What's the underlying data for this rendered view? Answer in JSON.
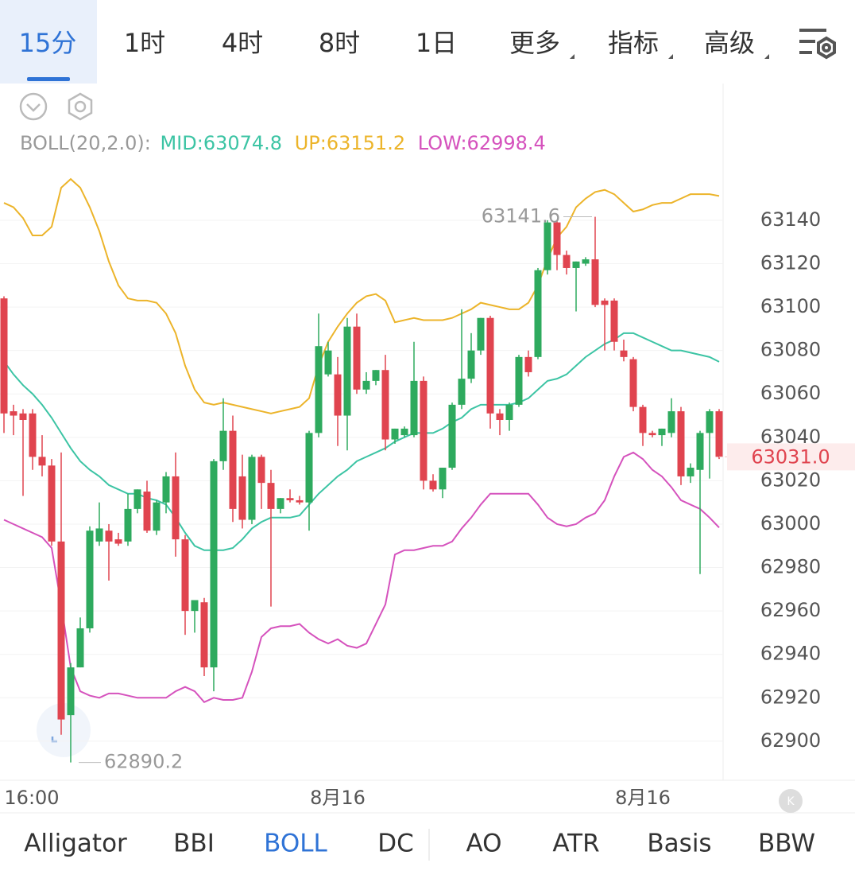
{
  "timeframe_tabs": [
    "15分",
    "1时",
    "4时",
    "8时",
    "1日",
    "更多",
    "指标",
    "高级"
  ],
  "indicator_tabs": [
    "Alligator",
    "BBI",
    "BOLL",
    "DC",
    "AO",
    "ATR",
    "Basis",
    "BBW"
  ],
  "chart_data": {
    "type": "candlestick",
    "indicator_label": "BOLL(20,2.0):",
    "categories": [
      null,
      null,
      null,
      "16:00",
      null,
      null,
      null,
      null,
      null,
      null,
      null,
      null,
      null,
      null,
      null,
      null,
      null,
      null,
      null,
      null,
      null,
      null,
      null,
      null,
      null,
      null,
      null,
      null,
      null,
      null,
      null,
      null,
      null,
      null,
      null,
      "8月16",
      null,
      null,
      null,
      null,
      null,
      null,
      null,
      null,
      null,
      null,
      null,
      null,
      null,
      null,
      null,
      null,
      null,
      null,
      null,
      null,
      null,
      null,
      null,
      null,
      null,
      null,
      null,
      null,
      null,
      null,
      null,
      "8月16",
      null,
      null,
      null,
      null,
      null,
      null,
      null,
      null
    ],
    "open": [
      63104,
      63052,
      63051,
      63051,
      63031,
      63027,
      62992,
      62912,
      62934,
      62952,
      62992,
      62997,
      62993,
      62992,
      63007,
      63015,
      62997,
      63010,
      63022,
      62993,
      62960,
      62964,
      62934,
      63029,
      63043,
      63022,
      63002,
      63031,
      63019,
      63007,
      63012,
      63011,
      63010,
      63042,
      63069,
      63069,
      63050,
      63091,
      63062,
      63066,
      63071,
      63039,
      63041,
      63041,
      63066,
      63020,
      63016,
      63026,
      63055,
      63067,
      63080,
      63095,
      63051,
      63048,
      63055,
      63077,
      63077,
      63117,
      63139,
      63124,
      63118,
      63120,
      63122,
      63103,
      63103,
      63080,
      63076,
      63054,
      63042,
      63041,
      63042,
      63052,
      63022,
      63025,
      63042,
      63052
    ],
    "high": [
      63105,
      63055,
      63053,
      63053,
      63041,
      63030,
      63033,
      62936,
      62957,
      62999,
      63010,
      63000,
      62996,
      63014,
      63016,
      63020,
      63011,
      63024,
      63033,
      62995,
      62965,
      62966,
      63030,
      63058,
      63050,
      63032,
      63032,
      63032,
      63025,
      63012,
      63016,
      63013,
      63043,
      63097,
      63084,
      63077,
      63095,
      63097,
      63070,
      63071,
      63078,
      63044,
      63045,
      63084,
      63068,
      63023,
      63026,
      63056,
      63099,
      63088,
      63095,
      63096,
      63053,
      63056,
      63078,
      63080,
      63118,
      63140,
      63140,
      63126,
      63121,
      63123,
      63141.6,
      63104,
      63104,
      63085,
      63077,
      63055,
      63043,
      63044,
      63058,
      63054,
      63028,
      63043,
      63053,
      63053
    ],
    "low": [
      63042,
      63041,
      63013,
      63025,
      63022,
      62990,
      62903,
      62890.2,
      62934,
      62950,
      62990,
      62974,
      62990,
      62990,
      63005,
      62996,
      62995,
      63005,
      62985,
      62949,
      62950,
      62930,
      62923,
      63025,
      63001,
      62998,
      63000,
      63007,
      62962,
      63005,
      63010,
      63009,
      62997,
      63040,
      63068,
      63036,
      63034,
      63060,
      63060,
      63064,
      63034,
      63037,
      63040,
      63040,
      63016,
      63015,
      63012,
      63025,
      63053,
      63065,
      63078,
      63044,
      63041,
      63043,
      63054,
      63068,
      63076,
      63115,
      63117,
      63115,
      63098,
      63119,
      63100,
      63080,
      63080,
      63075,
      63052,
      63036,
      63040,
      63036,
      63040,
      63018,
      63019,
      62977,
      63021,
      63030
    ],
    "close": [
      63051,
      63050,
      63048,
      63031,
      63027,
      62992,
      62910,
      62934,
      62952,
      62997,
      62998,
      62992,
      62991,
      63007,
      63016,
      62997,
      63010,
      63022,
      62993,
      62960,
      62965,
      62934,
      63029,
      63043,
      63007,
      63002,
      63031,
      63019,
      63007,
      63012,
      63011,
      63010,
      63042,
      63082,
      63080,
      63050,
      63091,
      63062,
      63066,
      63071,
      63039,
      63044,
      63044,
      63066,
      63020,
      63016,
      63026,
      63055,
      63067,
      63080,
      63095,
      63051,
      63048,
      63055,
      63077,
      63070,
      63117,
      63139,
      63124,
      63118,
      63121,
      63122,
      63101,
      63101,
      63084,
      63077,
      63054,
      63042,
      63041,
      63044,
      63052,
      63022,
      63026,
      63042,
      63052,
      63031
    ],
    "up_color": "#2eaa5e",
    "down_color": "#e0444f",
    "series": [
      {
        "name": "MID:63074.8",
        "color": "#3cc4a4",
        "values": [
          63075,
          63069,
          63064,
          63060,
          63055,
          63049,
          63042,
          63035,
          63029,
          63025,
          63022,
          63018,
          63016,
          63014,
          63014,
          63012,
          63011,
          63009,
          63003,
          62996,
          62990,
          62988,
          62988,
          62988,
          62989,
          62993,
          62998,
          63001,
          63003,
          63003,
          63003,
          63004,
          63009,
          63014,
          63018,
          63022,
          63025,
          63029,
          63031,
          63033,
          63035,
          63038,
          63040,
          63042,
          63042,
          63042,
          63044,
          63047,
          63049,
          63053,
          63055,
          63055,
          63055,
          63055,
          63056,
          63058,
          63062,
          63066,
          63067,
          63069,
          63073,
          63077,
          63080,
          63083,
          63085,
          63088,
          63088,
          63086,
          63084,
          63082,
          63080,
          63080,
          63079,
          63078,
          63077,
          63074.8
        ]
      },
      {
        "name": "UP:63151.2",
        "color": "#ecb42a",
        "values": [
          63148,
          63146,
          63141,
          63133,
          63133,
          63137,
          63155,
          63159,
          63155,
          63146,
          63135,
          63121,
          63110,
          63104,
          63103,
          63103,
          63102,
          63097,
          63088,
          63073,
          63062,
          63056,
          63055,
          63056,
          63055,
          63054,
          63053,
          63052,
          63051,
          63052,
          63053,
          63054,
          63058,
          63073,
          63084,
          63091,
          63097,
          63102,
          63105,
          63106,
          63103,
          63093,
          63094,
          63095,
          63094,
          63094,
          63094,
          63095,
          63097,
          63099,
          63102,
          63101,
          63100,
          63099,
          63099,
          63102,
          63110,
          63122,
          63132,
          63137,
          63146,
          63150,
          63153,
          63154,
          63152,
          63148,
          63144,
          63145,
          63147,
          63148,
          63148,
          63150,
          63152,
          63152,
          63152,
          63151.2
        ]
      },
      {
        "name": "LOW:62998.4",
        "color": "#d552bd",
        "values": [
          63002,
          63000,
          62998,
          62996,
          62994,
          62989,
          62963,
          62934,
          62923,
          62921,
          62920,
          62922,
          62922,
          62921,
          62920,
          62920,
          62920,
          62920,
          62923,
          62925,
          62923,
          62918,
          62920,
          62919,
          62919,
          62920,
          62932,
          62948,
          62952,
          62953,
          62953,
          62954,
          62950,
          62947,
          62945,
          62947,
          62944,
          62943,
          62945,
          62954,
          62963,
          62986,
          62988,
          62988,
          62989,
          62990,
          62990,
          62992,
          62998,
          63003,
          63009,
          63014,
          63014,
          63014,
          63014,
          63014,
          63009,
          63003,
          63000,
          62999,
          63000,
          63003,
          63005,
          63011,
          63022,
          63031,
          63033,
          63030,
          63025,
          63022,
          63017,
          63011,
          63009,
          63007,
          63003,
          62998.4
        ]
      }
    ],
    "last_price": {
      "value": 63031,
      "label": "63031.0"
    },
    "ylim": [
      62882,
      63203
    ],
    "yticks": [
      62900,
      62920,
      62940,
      62960,
      62980,
      63000,
      63020,
      63040,
      63060,
      63080,
      63100,
      63120,
      63140
    ],
    "grid": true
  }
}
